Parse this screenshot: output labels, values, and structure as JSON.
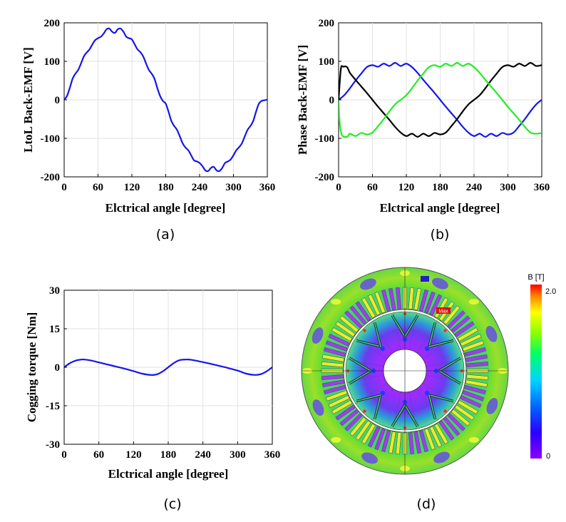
{
  "chart_data": [
    {
      "type": "line",
      "panel_label": "(a)",
      "xlabel": "Elctrical angle [degree]",
      "ylabel": "LtoL Back-EMF [V]",
      "xlim": [
        0,
        360
      ],
      "ylim": [
        -200,
        200
      ],
      "xticks": [
        0,
        60,
        120,
        180,
        240,
        300,
        360
      ],
      "yticks": [
        -200,
        -100,
        0,
        100,
        200
      ],
      "grid": true,
      "series": [
        {
          "color": "#1515ee",
          "x": [
            0,
            5,
            10,
            15,
            20,
            25,
            30,
            35,
            40,
            45,
            50,
            55,
            60,
            65,
            70,
            75,
            80,
            85,
            90,
            95,
            100,
            105,
            110,
            115,
            120,
            125,
            130,
            135,
            140,
            145,
            150,
            155,
            160,
            165,
            170,
            175,
            180,
            185,
            190,
            195,
            200,
            205,
            210,
            215,
            220,
            225,
            230,
            235,
            240,
            245,
            250,
            255,
            260,
            265,
            270,
            275,
            280,
            285,
            290,
            295,
            300,
            305,
            310,
            315,
            320,
            325,
            330,
            335,
            340,
            345,
            350,
            355,
            360
          ],
          "y": [
            0,
            10,
            31,
            55,
            68,
            78,
            95,
            113,
            123,
            131,
            144,
            155,
            160,
            164,
            172,
            183,
            185,
            177,
            174,
            183,
            185,
            177,
            164,
            160,
            157,
            144,
            131,
            124,
            113,
            95,
            78,
            68,
            55,
            31,
            10,
            -3,
            -10,
            -31,
            -55,
            -68,
            -78,
            -95,
            -113,
            -124,
            -131,
            -144,
            -157,
            -160,
            -164,
            -172,
            -183,
            -185,
            -177,
            -174,
            -183,
            -185,
            -177,
            -164,
            -160,
            -155,
            -144,
            -131,
            -123,
            -113,
            -95,
            -78,
            -68,
            -55,
            -31,
            -10,
            -3,
            -1,
            0
          ]
        }
      ]
    },
    {
      "type": "line",
      "panel_label": "(b)",
      "xlabel": "Elctrical angle [degree]",
      "ylabel": "Phase Back-EMF [V]",
      "xlim": [
        0,
        360
      ],
      "ylim": [
        -200,
        200
      ],
      "xticks": [
        0,
        60,
        120,
        180,
        240,
        300,
        360
      ],
      "yticks": [
        -200,
        -100,
        0,
        100,
        200
      ],
      "grid": true,
      "series": [
        {
          "color": "#1515ee",
          "x": [
            0,
            10,
            20,
            30,
            40,
            50,
            60,
            70,
            80,
            90,
            100,
            110,
            120,
            130,
            140,
            150,
            160,
            170,
            180,
            190,
            200,
            210,
            220,
            230,
            240,
            250,
            260,
            270,
            280,
            290,
            300,
            310,
            320,
            330,
            340,
            350,
            360
          ],
          "y": [
            0,
            12,
            30,
            50,
            68,
            85,
            90,
            86,
            94,
            88,
            96,
            88,
            94,
            85,
            70,
            52,
            35,
            18,
            0,
            -18,
            -35,
            -52,
            -70,
            -85,
            -94,
            -88,
            -96,
            -88,
            -94,
            -86,
            -90,
            -85,
            -68,
            -50,
            -30,
            -12,
            0
          ]
        },
        {
          "color": "#000000",
          "x": [
            0,
            4,
            8,
            15,
            20,
            30,
            40,
            50,
            60,
            70,
            80,
            90,
            100,
            110,
            120,
            130,
            140,
            150,
            160,
            170,
            180,
            190,
            200,
            210,
            220,
            230,
            240,
            250,
            260,
            270,
            280,
            290,
            300,
            310,
            320,
            330,
            340,
            350,
            360
          ],
          "y": [
            0,
            80,
            86,
            85,
            70,
            52,
            35,
            18,
            0,
            -18,
            -35,
            -52,
            -70,
            -85,
            -94,
            -88,
            -96,
            -88,
            -94,
            -86,
            -90,
            -85,
            -68,
            -50,
            -30,
            -12,
            0,
            12,
            30,
            50,
            68,
            85,
            90,
            86,
            94,
            88,
            96,
            88,
            90
          ]
        },
        {
          "color": "#22ee22",
          "x": [
            0,
            2,
            6,
            15,
            20,
            30,
            40,
            50,
            60,
            70,
            80,
            90,
            100,
            110,
            120,
            130,
            140,
            150,
            160,
            170,
            180,
            190,
            200,
            210,
            220,
            230,
            240,
            250,
            260,
            270,
            280,
            290,
            300,
            310,
            320,
            330,
            340,
            350,
            360
          ],
          "y": [
            0,
            -60,
            -92,
            -96,
            -88,
            -94,
            -86,
            -90,
            -85,
            -68,
            -50,
            -30,
            -12,
            0,
            12,
            30,
            50,
            68,
            85,
            90,
            86,
            94,
            88,
            96,
            88,
            94,
            85,
            70,
            52,
            35,
            18,
            0,
            -18,
            -35,
            -52,
            -70,
            -85,
            -88,
            -86
          ]
        }
      ]
    },
    {
      "type": "line",
      "panel_label": "(c)",
      "xlabel": "Elctrical angle [degree]",
      "ylabel": "Cogging torque [Nm]",
      "xlim": [
        0,
        360
      ],
      "ylim": [
        -30,
        30
      ],
      "xticks": [
        0,
        60,
        120,
        180,
        240,
        300,
        360
      ],
      "yticks": [
        -30,
        -15,
        0,
        15,
        30
      ],
      "grid": true,
      "series": [
        {
          "color": "#1515ee",
          "x": [
            0,
            10,
            20,
            30,
            35,
            45,
            60,
            80,
            100,
            120,
            135,
            150,
            160,
            170,
            180,
            190,
            200,
            210,
            220,
            240,
            260,
            280,
            300,
            315,
            330,
            340,
            350,
            360
          ],
          "y": [
            0,
            1.6,
            2.6,
            3.0,
            3.0,
            2.7,
            1.9,
            0.8,
            -0.3,
            -1.5,
            -2.5,
            -3.0,
            -2.8,
            -1.7,
            0,
            1.7,
            2.8,
            3.0,
            2.9,
            2.0,
            1.0,
            -0.1,
            -1.3,
            -2.5,
            -3.0,
            -2.7,
            -1.6,
            0
          ]
        }
      ]
    },
    {
      "type": "heatmap",
      "panel_label": "(d)",
      "colorbar_label": "B [T]",
      "colorbar_max_label": "2.0",
      "colorbar_min_label": "0",
      "max_marker_label": "Max",
      "range": [
        0,
        2.0
      ]
    }
  ]
}
